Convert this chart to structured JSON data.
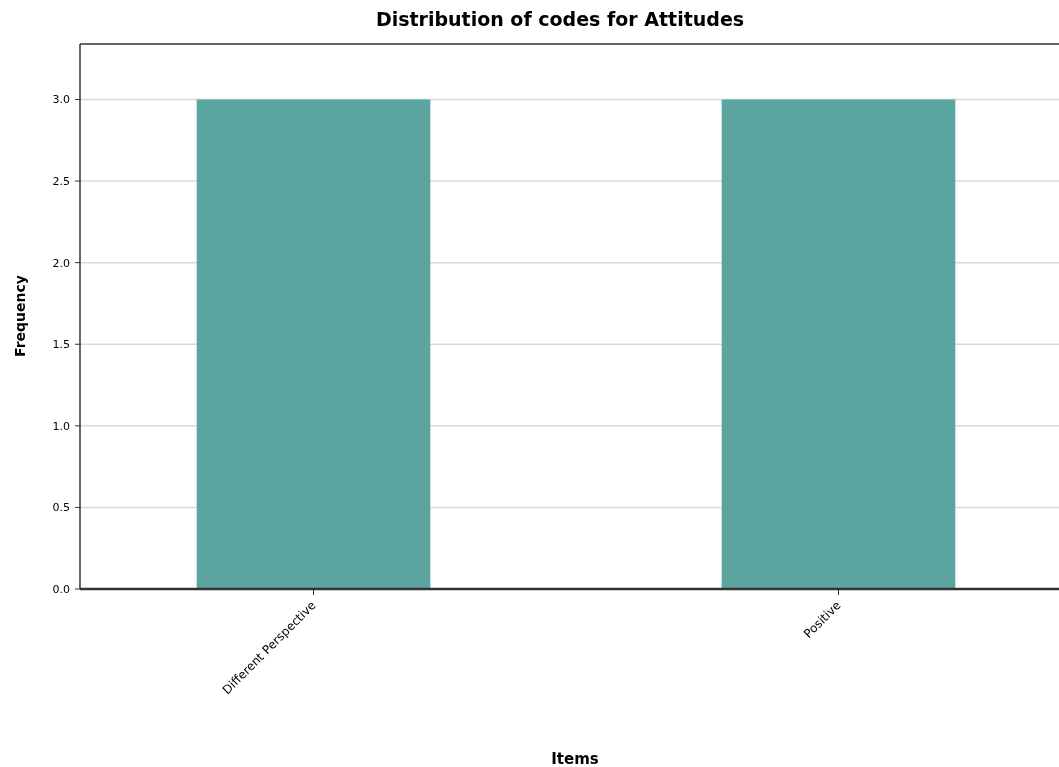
{
  "chart_data": {
    "type": "bar",
    "title": "Distribution of codes for Attitudes",
    "xlabel": "Items",
    "ylabel": "Frequency",
    "categories": [
      "Different Perspective",
      "Positive"
    ],
    "values": [
      3,
      3
    ],
    "color": "#5ba4a0",
    "ylim": [
      0,
      3.34
    ],
    "yticks": [
      {
        "value": 0,
        "label": "0.0"
      },
      {
        "value": 0.5,
        "label": "0.5"
      },
      {
        "value": 1,
        "label": "1.0"
      },
      {
        "value": 1.5,
        "label": "1.5"
      },
      {
        "value": 2,
        "label": "2.0"
      },
      {
        "value": 2.5,
        "label": "2.5"
      },
      {
        "value": 3,
        "label": "3.0"
      }
    ],
    "grid": true
  }
}
